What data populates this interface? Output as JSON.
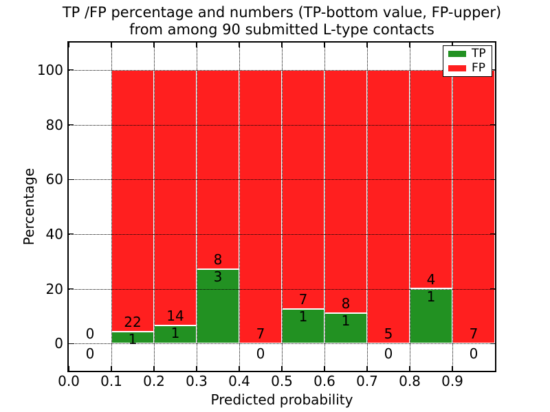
{
  "chart_data": {
    "type": "bar",
    "stacked": true,
    "title_lines": [
      "TP /FP percentage and numbers (TP-bottom value, FP-upper)",
      "from among 90 submitted L-type contacts"
    ],
    "total_submitted": 90,
    "xlabel": "Predicted probability",
    "ylabel": "Percentage",
    "xlim": [
      0.0,
      1.0
    ],
    "ylim": [
      -10,
      110
    ],
    "xticks": [
      0.0,
      0.1,
      0.2,
      0.3,
      0.4,
      0.5,
      0.6,
      0.7,
      0.8,
      0.9
    ],
    "xtick_labels": [
      "0.0",
      "0.1",
      "0.2",
      "0.3",
      "0.4",
      "0.5",
      "0.6",
      "0.7",
      "0.8",
      "0.9"
    ],
    "yticks": [
      0,
      20,
      40,
      60,
      80,
      100
    ],
    "grid": {
      "style": "dotted",
      "color": "#000000",
      "drawn_over_bars": true
    },
    "colors": {
      "tp": "#229122",
      "fp": "#ff1f1f",
      "bar_edge": "#ffffff"
    },
    "legend": {
      "position": "upper right",
      "items": [
        {
          "label": "TP",
          "color": "#229122"
        },
        {
          "label": "FP",
          "color": "#ff1f1f"
        }
      ]
    },
    "bins": [
      {
        "range": [
          0.0,
          0.1
        ],
        "tp_count": 0,
        "fp_count": 0,
        "tp_pct": 0,
        "fp_pct": 0
      },
      {
        "range": [
          0.1,
          0.2
        ],
        "tp_count": 1,
        "fp_count": 22,
        "tp_pct": 4.35,
        "fp_pct": 95.65
      },
      {
        "range": [
          0.2,
          0.3
        ],
        "tp_count": 1,
        "fp_count": 14,
        "tp_pct": 6.67,
        "fp_pct": 93.33
      },
      {
        "range": [
          0.3,
          0.4
        ],
        "tp_count": 3,
        "fp_count": 8,
        "tp_pct": 27.27,
        "fp_pct": 72.73
      },
      {
        "range": [
          0.4,
          0.5
        ],
        "tp_count": 0,
        "fp_count": 7,
        "tp_pct": 0,
        "fp_pct": 100
      },
      {
        "range": [
          0.5,
          0.6
        ],
        "tp_count": 1,
        "fp_count": 7,
        "tp_pct": 12.5,
        "fp_pct": 87.5
      },
      {
        "range": [
          0.6,
          0.7
        ],
        "tp_count": 1,
        "fp_count": 8,
        "tp_pct": 11.11,
        "fp_pct": 88.89
      },
      {
        "range": [
          0.7,
          0.8
        ],
        "tp_count": 0,
        "fp_count": 5,
        "tp_pct": 0,
        "fp_pct": 100
      },
      {
        "range": [
          0.8,
          0.9
        ],
        "tp_count": 1,
        "fp_count": 4,
        "tp_pct": 20,
        "fp_pct": 80
      },
      {
        "range": [
          0.9,
          1.0
        ],
        "tp_count": 0,
        "fp_count": 7,
        "tp_pct": 0,
        "fp_pct": 100
      }
    ]
  }
}
